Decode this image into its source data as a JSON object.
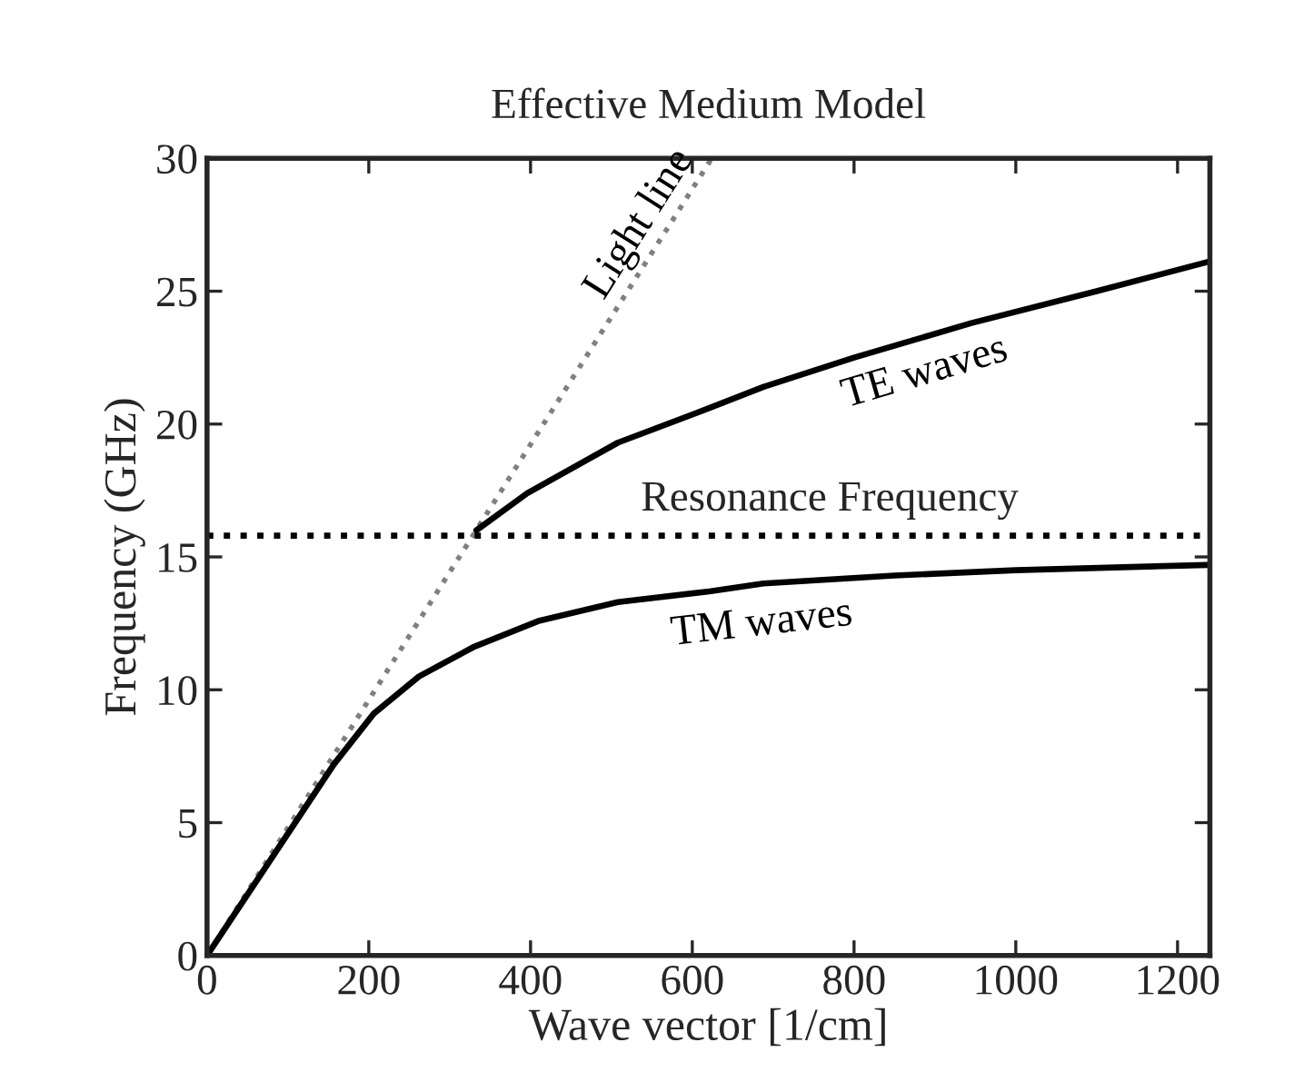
{
  "chart_data": {
    "type": "line",
    "title": "Effective Medium Model",
    "xlabel": "Wave vector [1/cm]",
    "ylabel": "Frequency (GHz)",
    "xlim": [
      0,
      1240
    ],
    "ylim": [
      0,
      30
    ],
    "xticks": [
      0,
      200,
      400,
      600,
      800,
      1000,
      1200
    ],
    "yticks": [
      0,
      5,
      10,
      15,
      20,
      25,
      30
    ],
    "grid": false,
    "legend": false,
    "marker": "none",
    "series": [
      {
        "name": "Light line",
        "color": "#808080",
        "line_style": "dotted",
        "x": [
          0,
          624
        ],
        "values": [
          0,
          30
        ]
      },
      {
        "name": "TE waves",
        "color": "#000000",
        "line_style": "solid",
        "x": [
          333,
          396,
          508,
          621,
          688,
          800,
          945,
          1100,
          1237
        ],
        "values": [
          16.0,
          17.4,
          19.3,
          20.6,
          21.4,
          22.5,
          23.8,
          25.0,
          26.1
        ]
      },
      {
        "name": "TM waves",
        "color": "#000000",
        "line_style": "solid",
        "x": [
          0,
          157,
          206,
          262,
          329,
          411,
          508,
          621,
          688,
          850,
          1000,
          1237
        ],
        "values": [
          0,
          7.2,
          9.1,
          10.5,
          11.6,
          12.6,
          13.3,
          13.7,
          14.0,
          14.3,
          14.5,
          14.7
        ]
      }
    ],
    "ref_lines": [
      {
        "axis": "y",
        "value": 15.8,
        "label": "Resonance Frequency",
        "color": "#000000",
        "line_style": "dotted"
      }
    ]
  }
}
